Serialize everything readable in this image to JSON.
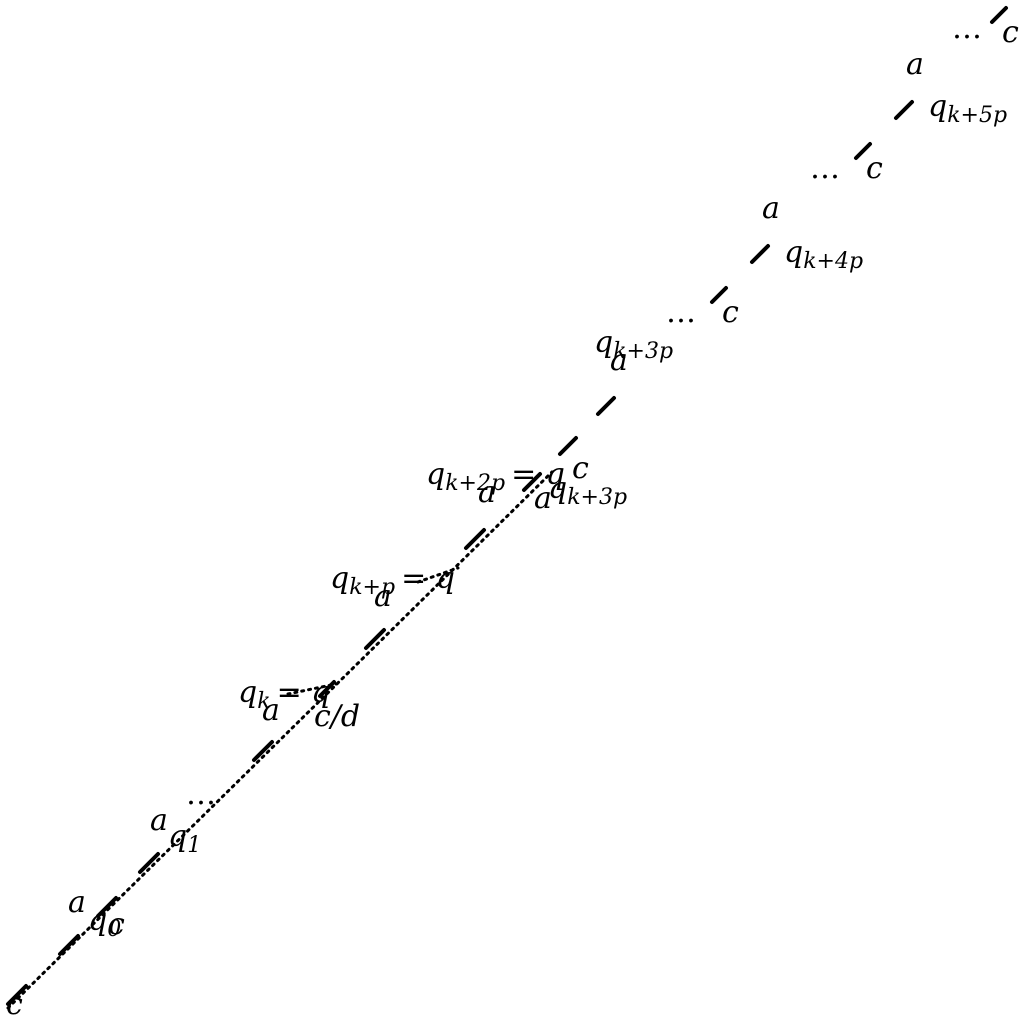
{
  "diagram": {
    "title": "",
    "labels": {
      "c_start": "c",
      "a1": "a",
      "q0": "q",
      "q0_sub": "0",
      "c_q0": "c",
      "a2": "a",
      "q1": "q",
      "q1_sub": "1",
      "dots1": "…",
      "qk": "q",
      "qk_sub": "k",
      "qk_eq": "= q",
      "ak": "a",
      "cd": "c/d",
      "qkp": "q",
      "qkp_sub": "k+p",
      "qkp_eq": "= q",
      "akp": "a",
      "qk2p": "q",
      "qk2p_sub": "k+2p",
      "qk2p_eq": "= q",
      "ak2p": "a",
      "a_right": "a",
      "qk3p_right": "q",
      "qk3p_right_sub": "k+3p",
      "c_mid": "c",
      "qk3p": "q",
      "qk3p_sub": "k+3p",
      "ak3p": "a",
      "dots2": "…",
      "c2": "c",
      "a4": "a",
      "qk4p": "q",
      "qk4p_sub": "k+4p",
      "dots3": "…",
      "c3": "c",
      "a5": "a",
      "qk5p": "q",
      "qk5p_sub": "k+5p",
      "dots4": "…",
      "c4": "c"
    }
  }
}
